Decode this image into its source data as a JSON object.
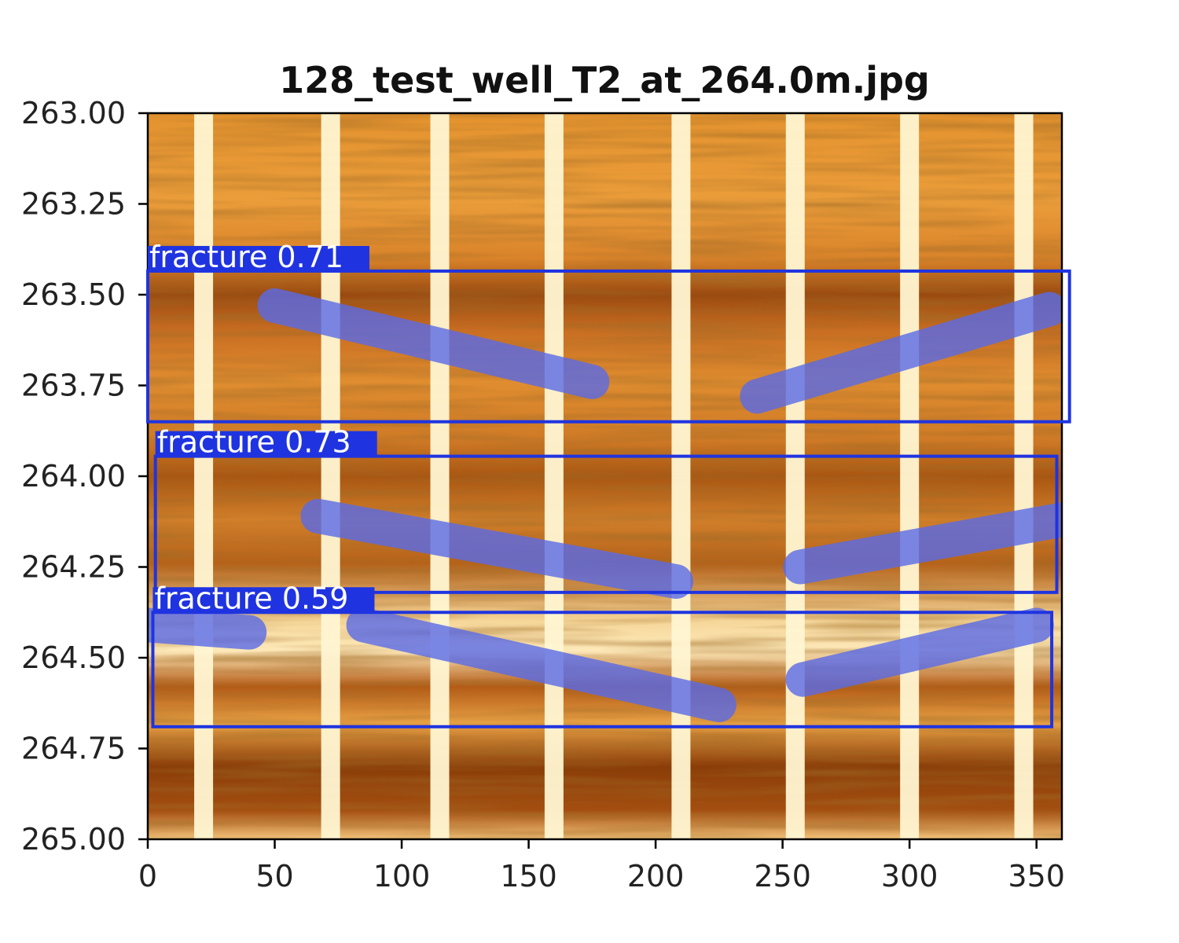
{
  "chart_data": {
    "type": "image",
    "title": "128_test_well_T2_at_264.0m.jpg",
    "xlabel": "",
    "ylabel": "",
    "xlim": [
      0,
      360
    ],
    "ylim": [
      265.0,
      263.0
    ],
    "xticks": [
      0,
      50,
      100,
      150,
      200,
      250,
      300,
      350
    ],
    "xtick_labels": [
      "0",
      "50",
      "100",
      "150",
      "200",
      "250",
      "300",
      "350"
    ],
    "yticks": [
      263.0,
      263.25,
      263.5,
      263.75,
      264.0,
      264.25,
      264.5,
      264.75,
      265.0
    ],
    "ytick_labels": [
      "263.00",
      "263.25",
      "263.50",
      "263.75",
      "264.00",
      "264.25",
      "264.50",
      "264.75",
      "265.00"
    ],
    "grid": false,
    "colormap": "orange-brown borehole image",
    "detections": [
      {
        "label": "fracture 0.71",
        "class": "fracture",
        "confidence": 0.71,
        "x_range": [
          0,
          363
        ],
        "depth_range": [
          263.435,
          263.85
        ]
      },
      {
        "label": "fracture 0.73",
        "class": "fracture",
        "confidence": 0.73,
        "x_range": [
          3,
          358
        ],
        "depth_range": [
          263.945,
          264.32
        ]
      },
      {
        "label": "fracture 0.59",
        "class": "fracture",
        "confidence": 0.59,
        "x_range": [
          2,
          356
        ],
        "depth_range": [
          264.375,
          264.69
        ]
      }
    ],
    "box_color": "#1f34e0",
    "mask_color": "#5a6be8"
  }
}
